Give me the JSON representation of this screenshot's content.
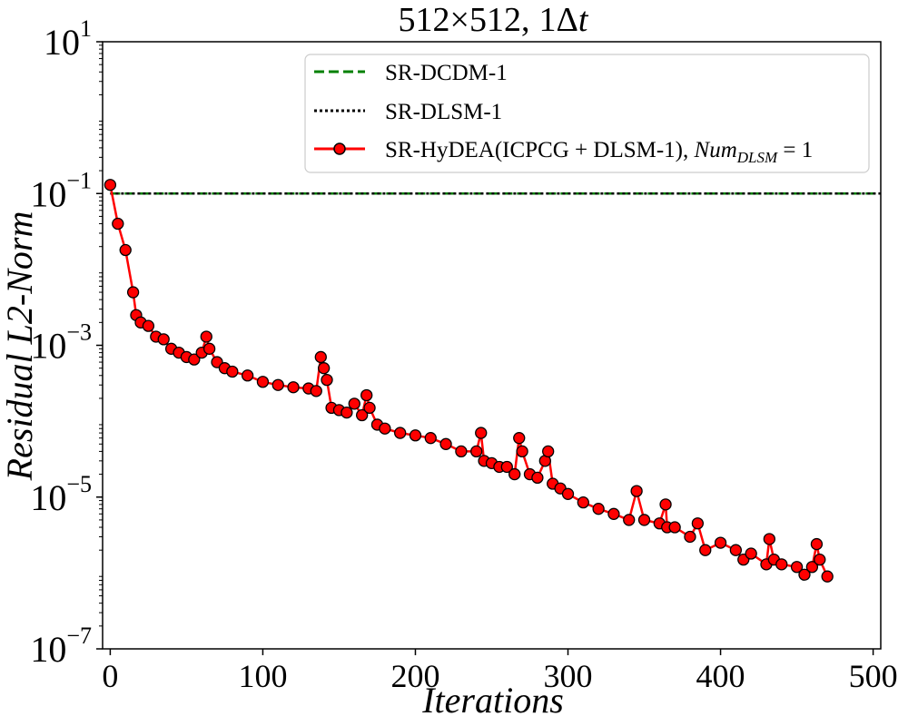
{
  "chart_data": {
    "type": "line",
    "title": "512×512, 1Δt",
    "title_parts": {
      "size": "512×512,",
      "count": "1",
      "delta": "Δ",
      "t": "t"
    },
    "xlabel": "Iterations",
    "ylabel": "Residual L2-Norm",
    "yscale": "log",
    "xlim": [
      -5,
      505
    ],
    "ylim": [
      1e-07,
      10
    ],
    "x_ticks": [
      0,
      100,
      200,
      300,
      400,
      500
    ],
    "x_tick_labels": [
      "0",
      "100",
      "200",
      "300",
      "400",
      "500"
    ],
    "y_ticks": [
      1e-07,
      1e-05,
      0.001,
      0.1,
      10
    ],
    "y_tick_labels": [
      {
        "base": "10",
        "exp": "−7"
      },
      {
        "base": "10",
        "exp": "−5"
      },
      {
        "base": "10",
        "exp": "−3"
      },
      {
        "base": "10",
        "exp": "−1"
      },
      {
        "base": "10",
        "exp": "1"
      }
    ],
    "legend_position": "top-right",
    "legend": [
      {
        "label": "SR-DCDM-1",
        "color": "#008000",
        "style": "dashed"
      },
      {
        "label": "SR-DLSM-1",
        "color": "#000000",
        "style": "dotted"
      },
      {
        "label": "SR-HyDEA(ICPCG + DLSM-1), ",
        "label_math": {
          "num": "Num",
          "sub": "DLSM",
          "eq": " = 1"
        },
        "color": "#ff0000",
        "style": "solid-marker"
      }
    ],
    "series": [
      {
        "name": "SR-DCDM-1",
        "color": "#008000",
        "style": "dashed",
        "x": [
          0,
          505
        ],
        "y": [
          0.1,
          0.1
        ]
      },
      {
        "name": "SR-DLSM-1",
        "color": "#000000",
        "style": "dotted",
        "x": [
          0,
          505
        ],
        "y": [
          0.1,
          0.1
        ]
      },
      {
        "name": "SR-HyDEA(ICPCG + DLSM-1), Num_DLSM = 1",
        "color": "#ff0000",
        "marker": "circle",
        "marker_edge": "#000000",
        "x": [
          0,
          5,
          10,
          15,
          17,
          20,
          25,
          30,
          35,
          40,
          45,
          50,
          55,
          60,
          63,
          65,
          70,
          75,
          80,
          90,
          100,
          110,
          120,
          130,
          135,
          138,
          140,
          142,
          145,
          150,
          155,
          160,
          165,
          168,
          170,
          175,
          180,
          190,
          200,
          210,
          220,
          230,
          240,
          243,
          245,
          250,
          255,
          260,
          265,
          268,
          270,
          275,
          280,
          285,
          287,
          290,
          295,
          300,
          310,
          320,
          330,
          340,
          345,
          350,
          360,
          364,
          365,
          370,
          380,
          385,
          390,
          400,
          410,
          415,
          420,
          430,
          432,
          435,
          440,
          450,
          455,
          460,
          463,
          465,
          470
        ],
        "y": [
          0.13,
          0.04,
          0.018,
          0.005,
          0.0025,
          0.002,
          0.0018,
          0.0013,
          0.0012,
          0.0009,
          0.0008,
          0.0007,
          0.00065,
          0.0008,
          0.0013,
          0.0009,
          0.0006,
          0.0005,
          0.00045,
          0.0004,
          0.00033,
          0.0003,
          0.00028,
          0.00027,
          0.00025,
          0.0007,
          0.0005,
          0.00035,
          0.00015,
          0.00014,
          0.00013,
          0.00017,
          0.00012,
          0.00022,
          0.00015,
          9e-05,
          8e-05,
          7e-05,
          6.5e-05,
          6e-05,
          5e-05,
          4e-05,
          4e-05,
          7e-05,
          3e-05,
          2.8e-05,
          2.5e-05,
          2.5e-05,
          2e-05,
          6e-05,
          4e-05,
          2e-05,
          1.8e-05,
          3e-05,
          4e-05,
          1.5e-05,
          1.3e-05,
          1.1e-05,
          8.5e-06,
          7e-06,
          6e-06,
          5e-06,
          1.2e-05,
          5e-06,
          4.5e-06,
          8e-06,
          4e-06,
          4e-06,
          3e-06,
          4.5e-06,
          2e-06,
          2.5e-06,
          2e-06,
          1.5e-06,
          1.8e-06,
          1.3e-06,
          2.8e-06,
          1.5e-06,
          1.3e-06,
          1.2e-06,
          9.5e-07,
          1.2e-06,
          2.4e-06,
          1.5e-06,
          9e-07
        ]
      }
    ]
  }
}
